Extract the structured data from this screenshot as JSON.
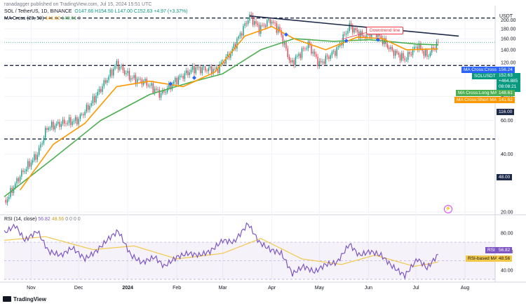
{
  "header": {
    "author_line": "ranadagger published on TradingView.com, Jul 15, 2024 15:51 UTC",
    "symbol": "SOL / TetherUS, 1D, BINANCE",
    "ohlc": "O147.66  H154.50  L147.00  C152.63  +4.97 (+3.37%)",
    "ma_cross": "MA Cross (20, 50)",
    "ma_cross_values": [
      "141.62",
      "148.61"
    ],
    "ma_cross_zero": "0",
    "rsi_legend": "RSI (14, close)",
    "rsi_values": [
      "56.82",
      "48.56"
    ],
    "rsi_zeros": "0  0  0  0"
  },
  "currency": "USDT",
  "badges": {
    "ma_cross_cross": {
      "label": "MA Cross:Cross",
      "value": "156.24"
    },
    "price": {
      "symbol": "SOLUSDT",
      "value": "152.63",
      "change": "+464.885",
      "countdown": "08:08:21"
    },
    "long_ma": {
      "label": "MA Cross:Long MA",
      "value": "148.61"
    },
    "short_ma": {
      "label": "MA Cross:Short MA",
      "value": "141.62"
    },
    "level_low": "116.00",
    "level_48": "48.00",
    "rsi": {
      "label": "RSI",
      "value": "56.82"
    },
    "rsi_ma": {
      "label": "RSI-based MA",
      "value": "48.56"
    }
  },
  "annotation": "Downtrend line",
  "footer": "TradingView",
  "colors": {
    "up": "#089981",
    "down": "#f23645",
    "ma_short": "#ff9800",
    "ma_long": "#4caf50",
    "rsi": "#7e57c2",
    "rsi_ma": "#f2c94c",
    "trend": "#1e2a4a",
    "level": "#1e2a4a",
    "price_line": "#089981",
    "cross_marker": "#2962ff"
  },
  "chart_data": [
    {
      "type": "candlestick",
      "title": "SOL / TetherUS, 1D, BINANCE",
      "y_scale": "log",
      "ylim": [
        20,
        215
      ],
      "y_ticks": [
        20.0,
        40.0,
        60.0,
        80.0,
        100.0,
        120.0,
        140.0,
        160.0,
        180.0,
        200.0
      ],
      "x_tick_labels": [
        "Nov",
        "Dec",
        "2024",
        "Feb",
        "Mar",
        "Apr",
        "May",
        "Jun",
        "Jul",
        "Aug"
      ],
      "x_tick_dates": [
        "2023-11-01",
        "2023-12-01",
        "2024-01-01",
        "2024-02-01",
        "2024-03-01",
        "2024-04-01",
        "2024-05-01",
        "2024-06-01",
        "2024-07-01",
        "2024-08-01"
      ],
      "x_range": [
        "2023-10-15",
        "2024-08-20"
      ],
      "close_path": [
        [
          "2023-10-15",
          22.0
        ],
        [
          "2023-10-25",
          31.0
        ],
        [
          "2023-11-05",
          40.0
        ],
        [
          "2023-11-11",
          55.0
        ],
        [
          "2023-11-20",
          58.0
        ],
        [
          "2023-11-30",
          60.0
        ],
        [
          "2023-12-08",
          72.0
        ],
        [
          "2023-12-15",
          88.0
        ],
        [
          "2023-12-25",
          118.0
        ],
        [
          "2024-01-03",
          100.0
        ],
        [
          "2024-01-12",
          95.0
        ],
        [
          "2024-01-22",
          82.0
        ],
        [
          "2024-02-01",
          98.0
        ],
        [
          "2024-02-12",
          112.0
        ],
        [
          "2024-02-26",
          110.0
        ],
        [
          "2024-03-06",
          135.0
        ],
        [
          "2024-03-18",
          210.0
        ],
        [
          "2024-03-24",
          180.0
        ],
        [
          "2024-03-31",
          200.0
        ],
        [
          "2024-04-06",
          175.0
        ],
        [
          "2024-04-13",
          118.0
        ],
        [
          "2024-04-24",
          150.0
        ],
        [
          "2024-05-01",
          118.0
        ],
        [
          "2024-05-12",
          140.0
        ],
        [
          "2024-05-20",
          186.0
        ],
        [
          "2024-05-28",
          165.0
        ],
        [
          "2024-06-06",
          172.0
        ],
        [
          "2024-06-15",
          140.0
        ],
        [
          "2024-06-24",
          125.0
        ],
        [
          "2024-07-02",
          148.0
        ],
        [
          "2024-07-08",
          130.0
        ],
        [
          "2024-07-15",
          152.63
        ]
      ],
      "ma_short_path": [
        [
          "2023-10-25",
          26.0
        ],
        [
          "2023-11-15",
          45.0
        ],
        [
          "2023-12-05",
          58.0
        ],
        [
          "2023-12-25",
          90.0
        ],
        [
          "2024-01-15",
          96.0
        ],
        [
          "2024-02-05",
          90.0
        ],
        [
          "2024-02-25",
          107.0
        ],
        [
          "2024-03-15",
          165.0
        ],
        [
          "2024-04-01",
          185.0
        ],
        [
          "2024-04-15",
          160.0
        ],
        [
          "2024-05-05",
          140.0
        ],
        [
          "2024-05-25",
          163.0
        ],
        [
          "2024-06-10",
          160.0
        ],
        [
          "2024-06-25",
          140.0
        ],
        [
          "2024-07-15",
          141.62
        ]
      ],
      "ma_long_path": [
        [
          "2023-10-15",
          24.0
        ],
        [
          "2023-11-15",
          38.0
        ],
        [
          "2023-12-15",
          60.0
        ],
        [
          "2024-01-15",
          82.0
        ],
        [
          "2024-02-10",
          95.0
        ],
        [
          "2024-03-01",
          105.0
        ],
        [
          "2024-03-25",
          140.0
        ],
        [
          "2024-04-15",
          160.0
        ],
        [
          "2024-05-10",
          155.0
        ],
        [
          "2024-06-01",
          158.0
        ],
        [
          "2024-07-01",
          150.0
        ],
        [
          "2024-07-15",
          148.61
        ]
      ],
      "trend_line": [
        [
          "2024-03-18",
          210.0
        ],
        [
          "2024-07-28",
          165.0
        ]
      ],
      "horizontal_levels": [
        {
          "value": 205.0,
          "style": "dashed"
        },
        {
          "value": 116.0,
          "style": "dashed"
        },
        {
          "value": 48.0,
          "style": "dashed"
        }
      ],
      "cross_markers": [
        [
          "2024-01-28",
          93.0
        ],
        [
          "2024-02-12",
          100.0
        ],
        [
          "2024-04-10",
          168.0
        ],
        [
          "2024-05-18",
          156.0
        ],
        [
          "2024-06-07",
          158.0
        ]
      ],
      "current_price": 152.63
    },
    {
      "type": "line",
      "title": "RSI (14, close)",
      "ylim": [
        30,
        95
      ],
      "y_ticks": [
        40.0,
        60.0,
        80.0
      ],
      "band": [
        30,
        70
      ],
      "series": [
        {
          "name": "RSI",
          "points": [
            [
              "2023-10-15",
              80
            ],
            [
              "2023-10-22",
              88
            ],
            [
              "2023-10-28",
              72
            ],
            [
              "2023-11-05",
              82
            ],
            [
              "2023-11-12",
              60
            ],
            [
              "2023-11-20",
              56
            ],
            [
              "2023-11-27",
              64
            ],
            [
              "2023-12-05",
              52
            ],
            [
              "2023-12-12",
              60
            ],
            [
              "2023-12-20",
              74
            ],
            [
              "2023-12-26",
              82
            ],
            [
              "2024-01-03",
              56
            ],
            [
              "2024-01-10",
              48
            ],
            [
              "2024-01-18",
              54
            ],
            [
              "2024-01-24",
              44
            ],
            [
              "2024-02-01",
              54
            ],
            [
              "2024-02-08",
              58
            ],
            [
              "2024-02-15",
              56
            ],
            [
              "2024-02-22",
              60
            ],
            [
              "2024-03-01",
              72
            ],
            [
              "2024-03-08",
              70
            ],
            [
              "2024-03-17",
              90
            ],
            [
              "2024-03-24",
              70
            ],
            [
              "2024-03-31",
              62
            ],
            [
              "2024-04-07",
              58
            ],
            [
              "2024-04-14",
              36
            ],
            [
              "2024-04-21",
              44
            ],
            [
              "2024-04-28",
              38
            ],
            [
              "2024-05-05",
              46
            ],
            [
              "2024-05-12",
              48
            ],
            [
              "2024-05-20",
              68
            ],
            [
              "2024-05-26",
              56
            ],
            [
              "2024-06-02",
              60
            ],
            [
              "2024-06-09",
              56
            ],
            [
              "2024-06-16",
              44
            ],
            [
              "2024-06-24",
              34
            ],
            [
              "2024-07-02",
              52
            ],
            [
              "2024-07-08",
              42
            ],
            [
              "2024-07-15",
              56.82
            ]
          ]
        },
        {
          "name": "RSI-based MA",
          "points": [
            [
              "2023-10-15",
              72
            ],
            [
              "2023-11-10",
              76
            ],
            [
              "2023-12-10",
              62
            ],
            [
              "2024-01-05",
              66
            ],
            [
              "2024-02-01",
              52
            ],
            [
              "2024-03-01",
              58
            ],
            [
              "2024-03-25",
              74
            ],
            [
              "2024-04-20",
              52
            ],
            [
              "2024-05-15",
              46
            ],
            [
              "2024-06-05",
              56
            ],
            [
              "2024-06-30",
              44
            ],
            [
              "2024-07-15",
              48.56
            ]
          ]
        }
      ]
    }
  ]
}
